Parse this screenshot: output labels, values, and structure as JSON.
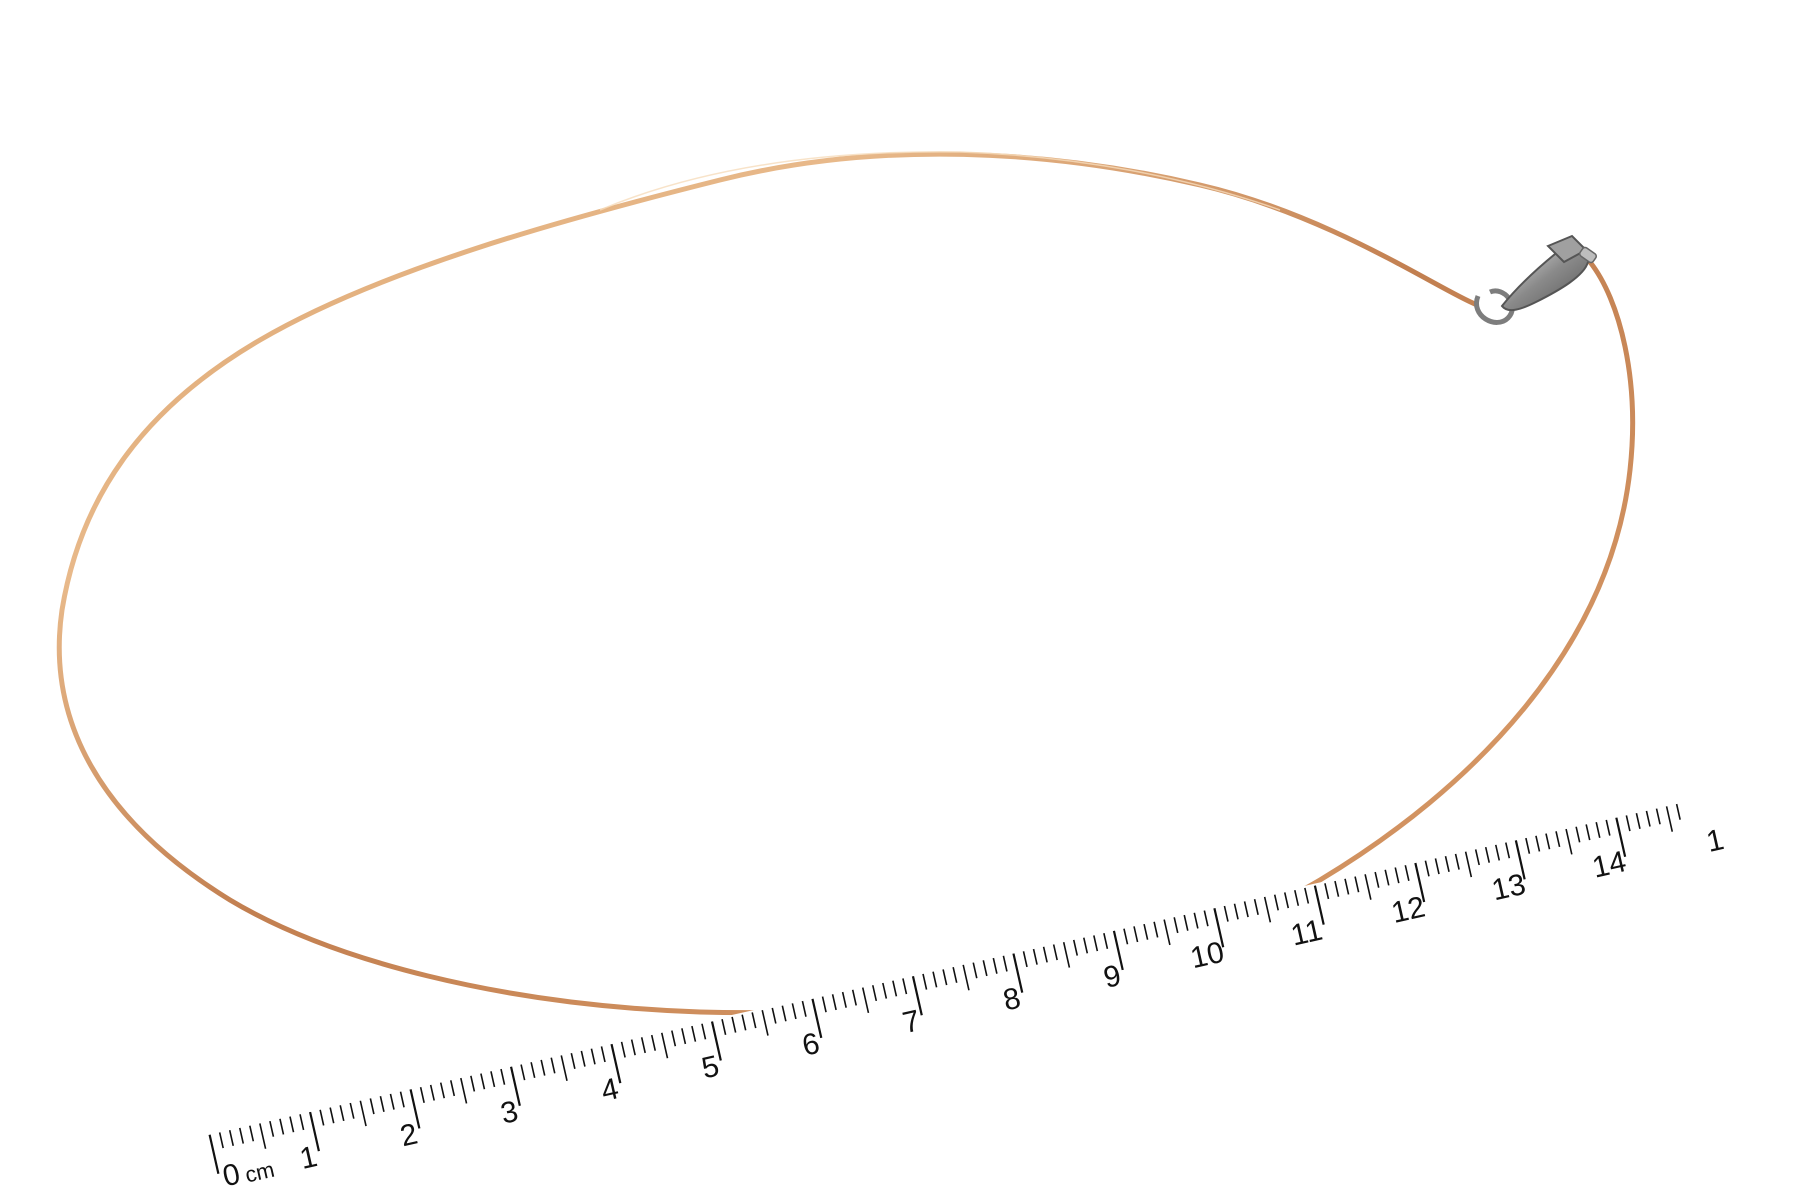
{
  "image": {
    "subject": "wire-necklace",
    "background_color": "#ffffff",
    "wire_colors": [
      "#c98a5a",
      "#e2b382",
      "#b8774a"
    ],
    "clasp_color": "#8c8c8c"
  },
  "ruler": {
    "unit": "cm",
    "numbers": [
      "0",
      "1",
      "2",
      "3",
      "4",
      "5",
      "6",
      "7",
      "8",
      "9",
      "10",
      "11",
      "12",
      "13",
      "14",
      "1"
    ]
  }
}
